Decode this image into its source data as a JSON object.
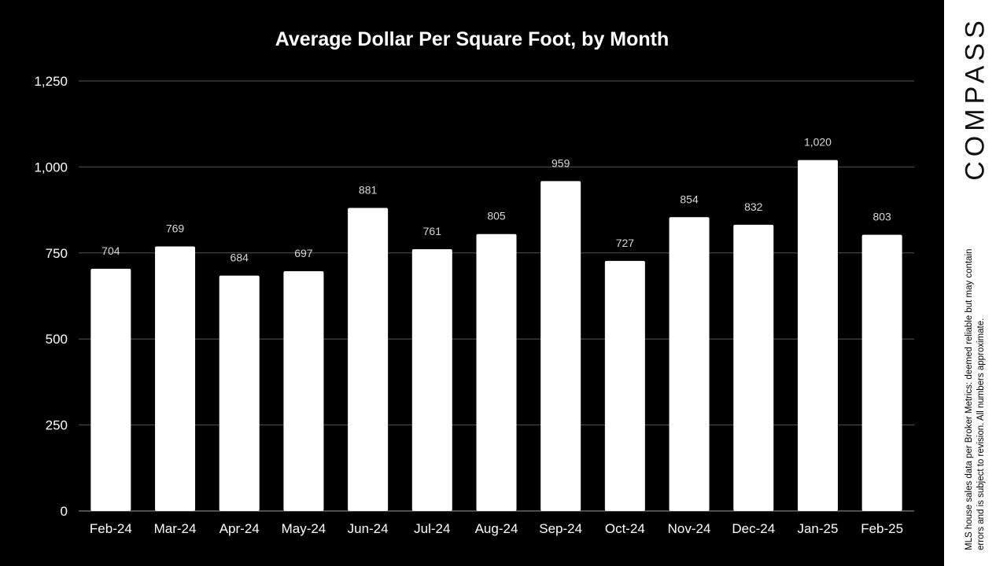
{
  "chart_data": {
    "type": "bar",
    "title": "Average Dollar Per Square Foot, by Month",
    "xlabel": "",
    "ylabel": "",
    "categories": [
      "Feb-24",
      "Mar-24",
      "Apr-24",
      "May-24",
      "Jun-24",
      "Jul-24",
      "Aug-24",
      "Sep-24",
      "Oct-24",
      "Nov-24",
      "Dec-24",
      "Jan-25",
      "Feb-25"
    ],
    "values": [
      704,
      769,
      684,
      697,
      881,
      761,
      805,
      959,
      727,
      854,
      832,
      1020,
      803
    ],
    "data_labels": [
      "704",
      "769",
      "684",
      "697",
      "881",
      "761",
      "805",
      "959",
      "727",
      "854",
      "832",
      "1,020",
      "803"
    ],
    "ylim": [
      0,
      1250
    ],
    "yticks": [
      0,
      250,
      500,
      750,
      1000,
      1250
    ],
    "ytick_labels": [
      "0",
      "250",
      "500",
      "750",
      "1,000",
      "1,250"
    ],
    "grid": true,
    "legend": "none",
    "colors": {
      "background": "#000000",
      "bar": "#ffffff",
      "text": "#ffffff",
      "grid": "#555555"
    }
  },
  "sidebar": {
    "logo": "COMPASS",
    "disclaimer": "MLS house sales data per Broker Metrics: deemed reliable but may contain errors and is subject to revision. All numbers approximate."
  }
}
